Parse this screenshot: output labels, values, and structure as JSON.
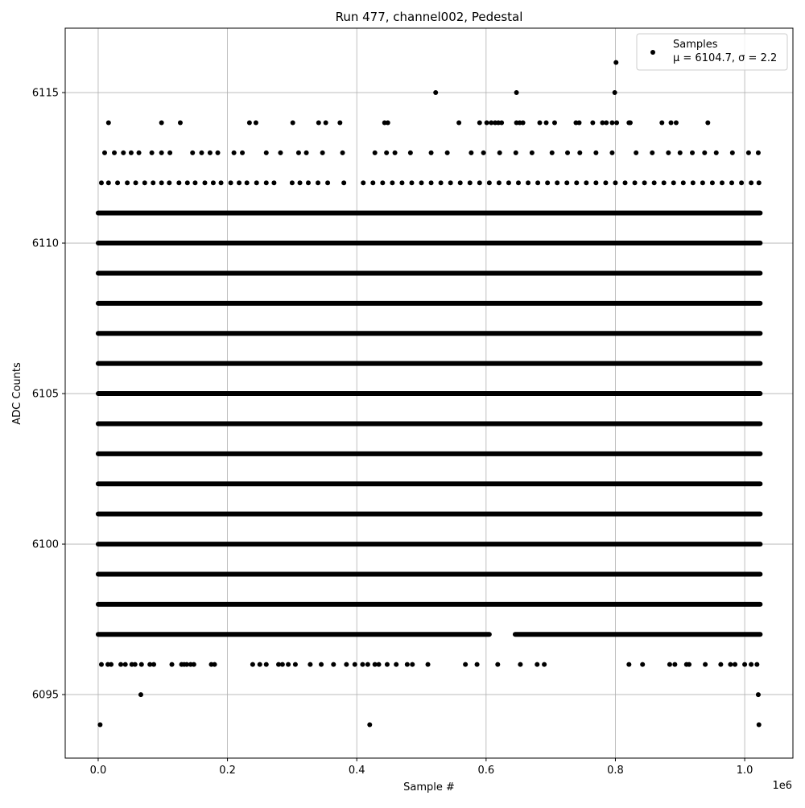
{
  "chart_data": {
    "type": "scatter",
    "title": "Run 477, channel002, Pedestal",
    "xlabel": "Sample #",
    "ylabel": "ADC Counts",
    "x_offset_label": "1e6",
    "xlim": [
      -51000,
      1074600
    ],
    "ylim": [
      6092.89,
      6117.14
    ],
    "xticks": [
      {
        "value": 0,
        "label": "0.0"
      },
      {
        "value": 200000,
        "label": "0.2"
      },
      {
        "value": 400000,
        "label": "0.4"
      },
      {
        "value": 600000,
        "label": "0.6"
      },
      {
        "value": 800000,
        "label": "0.8"
      },
      {
        "value": 1000000,
        "label": "1.0"
      }
    ],
    "yticks": [
      6095,
      6100,
      6105,
      6110,
      6115
    ],
    "grid": true,
    "legend": "upper right",
    "series": [
      {
        "name": "Samples",
        "note": "μ = 6104.7, σ = 2.2",
        "color": "#000000",
        "bands": [
          {
            "y": 6097,
            "x0": 0,
            "x1": 605000
          },
          {
            "y": 6097,
            "x0": 645000,
            "x1": 1024000
          },
          {
            "y": 6098,
            "x0": 0,
            "x1": 1024000
          },
          {
            "y": 6099,
            "x0": 0,
            "x1": 1024000
          },
          {
            "y": 6100,
            "x0": 0,
            "x1": 1024000
          },
          {
            "y": 6101,
            "x0": 0,
            "x1": 1024000
          },
          {
            "y": 6102,
            "x0": 0,
            "x1": 1024000
          },
          {
            "y": 6103,
            "x0": 0,
            "x1": 1024000
          },
          {
            "y": 6104,
            "x0": 0,
            "x1": 1024000
          },
          {
            "y": 6105,
            "x0": 0,
            "x1": 1024000
          },
          {
            "y": 6106,
            "x0": 0,
            "x1": 1024000
          },
          {
            "y": 6107,
            "x0": 0,
            "x1": 1024000
          },
          {
            "y": 6108,
            "x0": 0,
            "x1": 1024000
          },
          {
            "y": 6109,
            "x0": 0,
            "x1": 1024000
          },
          {
            "y": 6110,
            "x0": 0,
            "x1": 1024000
          },
          {
            "y": 6111,
            "x0": 0,
            "x1": 1024000
          }
        ],
        "levels": [
          {
            "y": 6094,
            "x": [
              3000,
              420000,
              1022000
            ]
          },
          {
            "y": 6095,
            "x": [
              66000,
              1021000
            ]
          },
          {
            "y": 6096,
            "x": [
              5000,
              15000,
              20000,
              35000,
              42000,
              52000,
              57000,
              67000,
              80000,
              86000,
              114000,
              129000,
              133000,
              137000,
              143000,
              148000,
              175000,
              180000,
              239000,
              250000,
              260000,
              279000,
              285000,
              294000,
              305000,
              328000,
              345000,
              364000,
              384000,
              397000,
              409000,
              417000,
              428000,
              434000,
              447000,
              461000,
              478000,
              486000,
              510000,
              568000,
              586000,
              618000,
              653000,
              679000,
              690000,
              821000,
              842000,
              884000,
              892000,
              910000,
              914000,
              939000,
              963000,
              978000,
              985000,
              1000000,
              1010000,
              1019000
            ]
          },
          {
            "y": 6112,
            "x": [
              5000,
              16000,
              30000,
              45000,
              58000,
              72000,
              85000,
              98000,
              110000,
              125000,
              138000,
              150000,
              165000,
              178000,
              190000,
              205000,
              218000,
              230000,
              245000,
              260000,
              272000,
              300000,
              312000,
              325000,
              340000,
              355000,
              380000,
              410000,
              425000,
              440000,
              455000,
              470000,
              485000,
              500000,
              515000,
              530000,
              545000,
              560000,
              575000,
              590000,
              605000,
              620000,
              635000,
              650000,
              665000,
              680000,
              695000,
              710000,
              725000,
              740000,
              755000,
              770000,
              785000,
              800000,
              815000,
              830000,
              845000,
              860000,
              875000,
              890000,
              905000,
              920000,
              935000,
              950000,
              965000,
              980000,
              995000,
              1010000,
              1022000
            ]
          },
          {
            "y": 6113,
            "x": [
              10000,
              25000,
              39000,
              51000,
              63000,
              83000,
              98000,
              111000,
              146000,
              160000,
              173000,
              185000,
              210000,
              223000,
              260000,
              282000,
              310000,
              322000,
              347000,
              378000,
              428000,
              446000,
              459000,
              483000,
              515000,
              540000,
              577000,
              596000,
              621000,
              646000,
              671000,
              702000,
              726000,
              745000,
              770000,
              795000,
              832000,
              857000,
              882000,
              900000,
              919000,
              938000,
              956000,
              981000,
              1006000,
              1021000
            ]
          },
          {
            "y": 6114,
            "x": [
              16000,
              98000,
              127000,
              234000,
              244000,
              301000,
              341000,
              352000,
              374000,
              443000,
              448000,
              558000,
              590000,
              601000,
              608000,
              614000,
              619000,
              624000,
              647000,
              652000,
              657000,
              683000,
              693000,
              706000,
              739000,
              744000,
              765000,
              780000,
              786000,
              795000,
              802000,
              821000,
              823000,
              872000,
              886000,
              894000,
              943000
            ]
          },
          {
            "y": 6115,
            "x": [
              522000,
              647000,
              799000
            ]
          },
          {
            "y": 6116,
            "x": [
              801000
            ]
          }
        ]
      }
    ]
  }
}
